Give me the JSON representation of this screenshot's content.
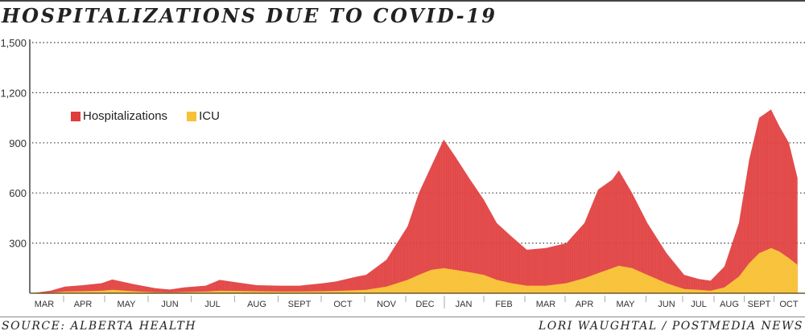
{
  "title": "HOSPITALIZATIONS DUE TO COVID-19",
  "source": "SOURCE: ALBERTA HEALTH",
  "credit": "LORI WAUGHTAL / POSTMEDIA NEWS",
  "chart_data": {
    "type": "area",
    "title": "HOSPITALIZATIONS DUE TO COVID-19",
    "xlabel": "",
    "ylabel": "",
    "ylim": [
      0,
      1500
    ],
    "yticks": [
      "1,500",
      "1,200",
      "900",
      "600",
      "300"
    ],
    "ytick_values": [
      1500,
      1200,
      900,
      600,
      300
    ],
    "grid": true,
    "legend_position": "top-left",
    "x_tick_labels": [
      "MAR",
      "APR",
      "MAY",
      "JUN",
      "JUL",
      "AUG",
      "SEPT",
      "OCT",
      "NOV",
      "DEC",
      "JAN",
      "FEB",
      "MAR",
      "APR",
      "MAY",
      "JUN",
      "JUL",
      "AUG",
      "SEPT",
      "OCT"
    ],
    "x": [
      "2020-03-05",
      "2020-03-20",
      "2020-04-01",
      "2020-04-15",
      "2020-04-28",
      "2020-05-05",
      "2020-05-20",
      "2020-06-05",
      "2020-06-15",
      "2020-06-25",
      "2020-07-10",
      "2020-07-20",
      "2020-08-01",
      "2020-08-15",
      "2020-09-01",
      "2020-09-15",
      "2020-10-01",
      "2020-10-10",
      "2020-10-25",
      "2020-11-01",
      "2020-11-15",
      "2020-12-01",
      "2020-12-10",
      "2020-12-20",
      "2020-12-30",
      "2021-01-08",
      "2021-01-20",
      "2021-02-01",
      "2021-02-10",
      "2021-02-20",
      "2021-03-01",
      "2021-03-15",
      "2021-04-01",
      "2021-04-15",
      "2021-04-25",
      "2021-05-05",
      "2021-05-10",
      "2021-05-20",
      "2021-06-01",
      "2021-06-15",
      "2021-07-01",
      "2021-07-15",
      "2021-07-27",
      "2021-08-10",
      "2021-08-25",
      "2021-09-05",
      "2021-09-15",
      "2021-09-27",
      "2021-10-05",
      "2021-10-15",
      "2021-10-24"
    ],
    "series": [
      {
        "name": "Hospitalizations",
        "color": "#e03c3c",
        "values": [
          0,
          15,
          40,
          48,
          60,
          82,
          55,
          30,
          22,
          35,
          45,
          80,
          65,
          48,
          45,
          45,
          60,
          70,
          100,
          110,
          200,
          400,
          600,
          760,
          920,
          820,
          680,
          560,
          420,
          340,
          260,
          270,
          300,
          420,
          620,
          680,
          735,
          600,
          420,
          240,
          110,
          85,
          75,
          160,
          420,
          800,
          1050,
          1100,
          1000,
          900,
          690
        ]
      },
      {
        "name": "ICU",
        "color": "#f8c136",
        "values": [
          0,
          3,
          10,
          12,
          15,
          20,
          12,
          6,
          5,
          7,
          10,
          15,
          14,
          12,
          10,
          10,
          12,
          14,
          18,
          20,
          40,
          80,
          110,
          140,
          150,
          140,
          125,
          110,
          80,
          60,
          45,
          45,
          60,
          90,
          120,
          150,
          165,
          150,
          110,
          60,
          25,
          20,
          15,
          35,
          100,
          180,
          240,
          270,
          250,
          210,
          170
        ]
      }
    ]
  }
}
